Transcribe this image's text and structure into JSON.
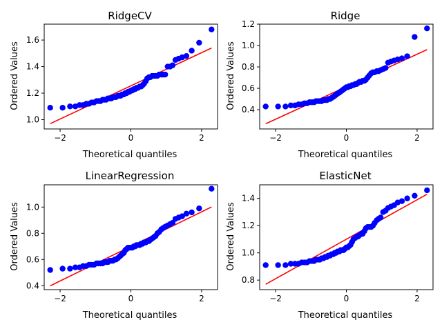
{
  "figure": {
    "background": "#ffffff"
  },
  "chart_data": [
    {
      "type": "scatter",
      "title": "RidgeCV",
      "xlabel": "Theoretical quantiles",
      "ylabel": "Ordered Values",
      "xlim": [
        -2.45,
        2.45
      ],
      "ylim": [
        0.93,
        1.72
      ],
      "xticks": [
        -2,
        0,
        2
      ],
      "xtick_labels": [
        "−2",
        "0",
        "2"
      ],
      "yticks": [
        1.0,
        1.2,
        1.4,
        1.6
      ],
      "ytick_labels": [
        "1.0",
        "1.2",
        "1.4",
        "1.6"
      ],
      "point_color": "#0000ff",
      "line_color": "#ff0000",
      "fit_line": {
        "slope": 0.125,
        "intercept": 1.255
      },
      "points": {
        "x": [
          -2.28,
          -1.93,
          -1.72,
          -1.57,
          -1.45,
          -1.35,
          -1.26,
          -1.18,
          -1.11,
          -1.04,
          -0.97,
          -0.91,
          -0.86,
          -0.8,
          -0.75,
          -0.7,
          -0.65,
          -0.6,
          -0.55,
          -0.51,
          -0.46,
          -0.42,
          -0.37,
          -0.33,
          -0.29,
          -0.25,
          -0.2,
          -0.16,
          -0.12,
          -0.08,
          -0.04,
          0,
          0.04,
          0.08,
          0.12,
          0.16,
          0.2,
          0.25,
          0.29,
          0.33,
          0.37,
          0.42,
          0.46,
          0.51,
          0.55,
          0.6,
          0.65,
          0.7,
          0.75,
          0.8,
          0.86,
          0.91,
          0.97,
          1.04,
          1.11,
          1.18,
          1.26,
          1.35,
          1.45,
          1.57,
          1.72,
          1.93,
          2.28
        ],
        "y": [
          1.09,
          1.09,
          1.1,
          1.1,
          1.11,
          1.11,
          1.12,
          1.12,
          1.13,
          1.13,
          1.14,
          1.14,
          1.14,
          1.15,
          1.15,
          1.15,
          1.16,
          1.16,
          1.16,
          1.17,
          1.17,
          1.17,
          1.18,
          1.18,
          1.18,
          1.19,
          1.19,
          1.2,
          1.2,
          1.21,
          1.21,
          1.22,
          1.22,
          1.23,
          1.23,
          1.24,
          1.24,
          1.25,
          1.25,
          1.26,
          1.27,
          1.29,
          1.31,
          1.32,
          1.32,
          1.33,
          1.33,
          1.33,
          1.33,
          1.34,
          1.34,
          1.34,
          1.34,
          1.4,
          1.4,
          1.41,
          1.45,
          1.46,
          1.47,
          1.48,
          1.52,
          1.58,
          1.68
        ]
      }
    },
    {
      "type": "scatter",
      "title": "Ridge",
      "xlabel": "Theoretical quantiles",
      "ylabel": "Ordered Values",
      "xlim": [
        -2.45,
        2.45
      ],
      "ylim": [
        0.22,
        1.2
      ],
      "xticks": [
        -2,
        0,
        2
      ],
      "xtick_labels": [
        "−2",
        "0",
        "2"
      ],
      "yticks": [
        0.4,
        0.6,
        0.8,
        1.0,
        1.2
      ],
      "ytick_labels": [
        "0.4",
        "0.6",
        "0.8",
        "1.0",
        "1.2"
      ],
      "point_color": "#0000ff",
      "line_color": "#ff0000",
      "fit_line": {
        "slope": 0.152,
        "intercept": 0.615
      },
      "points": {
        "x": [
          -2.28,
          -1.93,
          -1.72,
          -1.57,
          -1.45,
          -1.35,
          -1.26,
          -1.18,
          -1.11,
          -1.04,
          -0.97,
          -0.91,
          -0.86,
          -0.8,
          -0.75,
          -0.7,
          -0.65,
          -0.6,
          -0.55,
          -0.51,
          -0.46,
          -0.42,
          -0.37,
          -0.33,
          -0.29,
          -0.25,
          -0.2,
          -0.16,
          -0.12,
          -0.08,
          -0.04,
          0,
          0.04,
          0.08,
          0.12,
          0.16,
          0.2,
          0.25,
          0.29,
          0.33,
          0.37,
          0.42,
          0.46,
          0.51,
          0.55,
          0.6,
          0.65,
          0.7,
          0.75,
          0.8,
          0.86,
          0.91,
          0.97,
          1.04,
          1.11,
          1.18,
          1.26,
          1.35,
          1.45,
          1.57,
          1.72,
          1.93,
          2.28
        ],
        "y": [
          0.43,
          0.43,
          0.43,
          0.44,
          0.44,
          0.45,
          0.45,
          0.46,
          0.46,
          0.47,
          0.47,
          0.47,
          0.48,
          0.48,
          0.48,
          0.48,
          0.49,
          0.49,
          0.49,
          0.5,
          0.5,
          0.51,
          0.52,
          0.53,
          0.54,
          0.55,
          0.56,
          0.57,
          0.58,
          0.59,
          0.6,
          0.61,
          0.61,
          0.62,
          0.62,
          0.63,
          0.63,
          0.64,
          0.64,
          0.65,
          0.66,
          0.66,
          0.67,
          0.67,
          0.68,
          0.7,
          0.72,
          0.74,
          0.75,
          0.75,
          0.76,
          0.76,
          0.77,
          0.78,
          0.79,
          0.84,
          0.85,
          0.86,
          0.87,
          0.88,
          0.9,
          1.08,
          1.16
        ]
      }
    },
    {
      "type": "scatter",
      "title": "LinearRegression",
      "xlabel": "Theoretical quantiles",
      "ylabel": "Ordered Values",
      "xlim": [
        -2.45,
        2.45
      ],
      "ylim": [
        0.37,
        1.17
      ],
      "xticks": [
        -2,
        0,
        2
      ],
      "xtick_labels": [
        "−2",
        "0",
        "2"
      ],
      "yticks": [
        0.4,
        0.6,
        0.8,
        1.0
      ],
      "ytick_labels": [
        "0.4",
        "0.6",
        "0.8",
        "1.0"
      ],
      "point_color": "#0000ff",
      "line_color": "#ff0000",
      "fit_line": {
        "slope": 0.132,
        "intercept": 0.7
      },
      "points": {
        "x": [
          -2.28,
          -1.93,
          -1.72,
          -1.57,
          -1.45,
          -1.35,
          -1.26,
          -1.18,
          -1.11,
          -1.04,
          -0.97,
          -0.91,
          -0.86,
          -0.8,
          -0.75,
          -0.7,
          -0.65,
          -0.6,
          -0.55,
          -0.51,
          -0.46,
          -0.42,
          -0.37,
          -0.33,
          -0.29,
          -0.25,
          -0.2,
          -0.16,
          -0.12,
          -0.08,
          -0.04,
          0,
          0.04,
          0.08,
          0.12,
          0.16,
          0.2,
          0.25,
          0.29,
          0.33,
          0.37,
          0.42,
          0.46,
          0.51,
          0.55,
          0.6,
          0.65,
          0.7,
          0.75,
          0.8,
          0.86,
          0.91,
          0.97,
          1.04,
          1.11,
          1.18,
          1.26,
          1.35,
          1.45,
          1.57,
          1.72,
          1.93,
          2.28
        ],
        "y": [
          0.52,
          0.53,
          0.53,
          0.54,
          0.54,
          0.55,
          0.55,
          0.56,
          0.56,
          0.56,
          0.57,
          0.57,
          0.57,
          0.57,
          0.58,
          0.58,
          0.58,
          0.59,
          0.59,
          0.59,
          0.6,
          0.6,
          0.61,
          0.62,
          0.63,
          0.64,
          0.65,
          0.67,
          0.68,
          0.69,
          0.69,
          0.69,
          0.69,
          0.7,
          0.7,
          0.71,
          0.71,
          0.71,
          0.72,
          0.72,
          0.73,
          0.73,
          0.74,
          0.74,
          0.75,
          0.76,
          0.77,
          0.78,
          0.8,
          0.81,
          0.83,
          0.84,
          0.85,
          0.86,
          0.87,
          0.88,
          0.91,
          0.92,
          0.93,
          0.95,
          0.96,
          0.99,
          1.14
        ]
      }
    },
    {
      "type": "scatter",
      "title": "ElasticNet",
      "xlabel": "Theoretical quantiles",
      "ylabel": "Ordered Values",
      "xlim": [
        -2.45,
        2.45
      ],
      "ylim": [
        0.73,
        1.5
      ],
      "xticks": [
        -2,
        0,
        2
      ],
      "xtick_labels": [
        "−2",
        "0",
        "2"
      ],
      "yticks": [
        0.8,
        1.0,
        1.2,
        1.4
      ],
      "ytick_labels": [
        "0.8",
        "1.0",
        "1.2",
        "1.4"
      ],
      "point_color": "#0000ff",
      "line_color": "#ff0000",
      "fit_line": {
        "slope": 0.145,
        "intercept": 1.1
      },
      "points": {
        "x": [
          -2.28,
          -1.93,
          -1.72,
          -1.57,
          -1.45,
          -1.35,
          -1.26,
          -1.18,
          -1.11,
          -1.04,
          -0.97,
          -0.91,
          -0.86,
          -0.8,
          -0.75,
          -0.7,
          -0.65,
          -0.6,
          -0.55,
          -0.51,
          -0.46,
          -0.42,
          -0.37,
          -0.33,
          -0.29,
          -0.25,
          -0.2,
          -0.16,
          -0.12,
          -0.08,
          -0.04,
          0,
          0.04,
          0.08,
          0.12,
          0.16,
          0.2,
          0.25,
          0.29,
          0.33,
          0.37,
          0.42,
          0.46,
          0.51,
          0.55,
          0.6,
          0.65,
          0.7,
          0.75,
          0.8,
          0.86,
          0.91,
          0.97,
          1.04,
          1.11,
          1.18,
          1.26,
          1.35,
          1.45,
          1.57,
          1.72,
          1.93,
          2.28
        ],
        "y": [
          0.91,
          0.91,
          0.91,
          0.92,
          0.92,
          0.92,
          0.93,
          0.93,
          0.93,
          0.94,
          0.94,
          0.94,
          0.95,
          0.95,
          0.95,
          0.96,
          0.96,
          0.97,
          0.97,
          0.98,
          0.98,
          0.99,
          0.99,
          1.0,
          1.0,
          1.01,
          1.01,
          1.02,
          1.02,
          1.02,
          1.03,
          1.04,
          1.04,
          1.05,
          1.06,
          1.08,
          1.1,
          1.11,
          1.12,
          1.12,
          1.13,
          1.14,
          1.14,
          1.16,
          1.18,
          1.19,
          1.19,
          1.19,
          1.2,
          1.22,
          1.24,
          1.25,
          1.26,
          1.3,
          1.31,
          1.33,
          1.34,
          1.35,
          1.37,
          1.38,
          1.4,
          1.42,
          1.46
        ]
      }
    }
  ]
}
